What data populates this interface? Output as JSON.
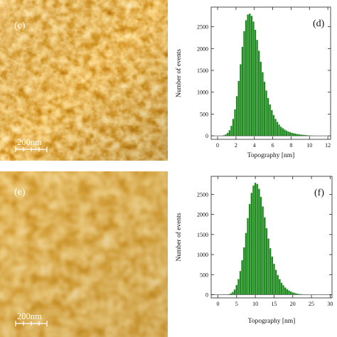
{
  "colors": {
    "afm_dark": "#3a0c00",
    "afm_mid": "#b0520a",
    "afm_light": "#fff0c4",
    "bar_fill": "#1f8a1f",
    "bar_edge": "#0d4d0d"
  },
  "panels": [
    {
      "id": "c",
      "label": "(c)",
      "scale_bar": "200nm",
      "texture": "fine"
    },
    {
      "id": "e",
      "label": "(e)",
      "scale_bar": "200nm",
      "texture": "coarse"
    }
  ],
  "chart_data": [
    {
      "id": "d",
      "type": "bar",
      "panel_label": "(d)",
      "xlabel": "Topography [nm]",
      "ylabel": "Number of events",
      "xlim": [
        -0.7,
        12.3
      ],
      "ylim": [
        -80,
        2950
      ],
      "xticks": [
        0,
        2,
        4,
        6,
        8,
        10,
        12
      ],
      "yticks": [
        0,
        500,
        1000,
        1500,
        2000,
        2500
      ],
      "grid": false,
      "bins": {
        "x": [
          0.3,
          0.5,
          0.7,
          0.9,
          1.1,
          1.3,
          1.5,
          1.7,
          1.9,
          2.1,
          2.3,
          2.5,
          2.7,
          2.9,
          3.1,
          3.3,
          3.5,
          3.7,
          3.9,
          4.1,
          4.3,
          4.5,
          4.7,
          4.9,
          5.1,
          5.3,
          5.5,
          5.7,
          5.9,
          6.1,
          6.3,
          6.5,
          6.7,
          6.9,
          7.1,
          7.3,
          7.5,
          7.7,
          7.9,
          8.1,
          8.3,
          8.5,
          8.7,
          8.9,
          9.1,
          9.3,
          9.5,
          9.7,
          9.9,
          10.1,
          10.3,
          10.5
        ],
        "counts": [
          0,
          5,
          15,
          35,
          70,
          130,
          230,
          390,
          610,
          910,
          1260,
          1640,
          2040,
          2400,
          2650,
          2780,
          2800,
          2750,
          2620,
          2430,
          2200,
          1950,
          1700,
          1460,
          1240,
          1040,
          870,
          720,
          590,
          480,
          390,
          320,
          260,
          210,
          175,
          145,
          120,
          100,
          85,
          70,
          60,
          50,
          42,
          36,
          30,
          25,
          20,
          16,
          12,
          9,
          6,
          3
        ]
      }
    },
    {
      "id": "f",
      "type": "bar",
      "panel_label": "(f)",
      "xlabel": "Topography [nm]",
      "ylabel": "Number of events",
      "xlim": [
        -1.8,
        30.5
      ],
      "ylim": [
        -80,
        2950
      ],
      "xticks": [
        0,
        5,
        10,
        15,
        20,
        25,
        30
      ],
      "yticks": [
        0,
        500,
        1000,
        1500,
        2000,
        2500
      ],
      "grid": false,
      "bins": {
        "x": [
          2.5,
          3,
          3.5,
          4,
          4.5,
          5,
          5.5,
          6,
          6.5,
          7,
          7.5,
          8,
          8.5,
          9,
          9.5,
          10,
          10.5,
          11,
          11.5,
          12,
          12.5,
          13,
          13.5,
          14,
          14.5,
          15,
          15.5,
          16,
          16.5,
          17,
          17.5,
          18,
          18.5,
          19,
          19.5,
          20,
          20.5,
          21,
          21.5,
          22,
          22.5,
          23
        ],
        "counts": [
          5,
          15,
          35,
          70,
          130,
          240,
          390,
          590,
          860,
          1180,
          1540,
          1910,
          2260,
          2540,
          2720,
          2790,
          2760,
          2640,
          2440,
          2200,
          1930,
          1660,
          1400,
          1160,
          950,
          770,
          620,
          490,
          390,
          300,
          235,
          180,
          140,
          105,
          80,
          60,
          45,
          33,
          24,
          16,
          10,
          5
        ]
      }
    }
  ]
}
